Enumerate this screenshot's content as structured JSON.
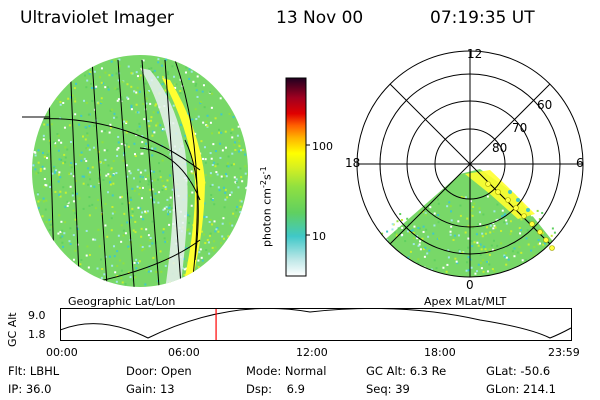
{
  "header": {
    "instrument": "Ultraviolet Imager",
    "date": "13 Nov 00",
    "time": "07:19:35 UT"
  },
  "left_panel": {
    "caption": "Geographic Lat/Lon"
  },
  "right_panel": {
    "caption": "Apex MLat/MLT",
    "mlt_labels": {
      "top": "12",
      "right": "6",
      "bottom": "0",
      "left": "18"
    },
    "lat_labels": [
      "60",
      "70",
      "80"
    ]
  },
  "colorbar": {
    "unit_label": "photon cm",
    "unit_sup1": "-2",
    "unit_mid": "s",
    "unit_sup2": "-1",
    "ticks": [
      "100",
      "10"
    ],
    "colors": [
      "#ffffff",
      "#c8e8e8",
      "#40c8c8",
      "#60d060",
      "#88e040",
      "#d0f020",
      "#ffff00",
      "#ffd000",
      "#ff9000",
      "#ff3000",
      "#d00000",
      "#a00020",
      "#600040",
      "#200020"
    ]
  },
  "gc_alt_strip": {
    "axis_label": "GC Alt",
    "y_ticks": [
      "9.0",
      "1.8"
    ],
    "x_ticks": [
      "00:00",
      "06:00",
      "12:00",
      "18:00",
      "23:59"
    ],
    "current_time_hours": 7.33,
    "marker_color": "#ff0000"
  },
  "status": {
    "filter": "Flt: LBHL",
    "ip": "IP: 36.0",
    "door": "Door: Open",
    "gain": "Gain: 13",
    "mode": "Mode: Normal",
    "dsp": "Dsp:    6.9",
    "gc_alt": "GC Alt: 6.3 Re",
    "seq": "Seq: 39",
    "glat": "GLat: -50.6",
    "glon": "GLon: 214.1"
  }
}
